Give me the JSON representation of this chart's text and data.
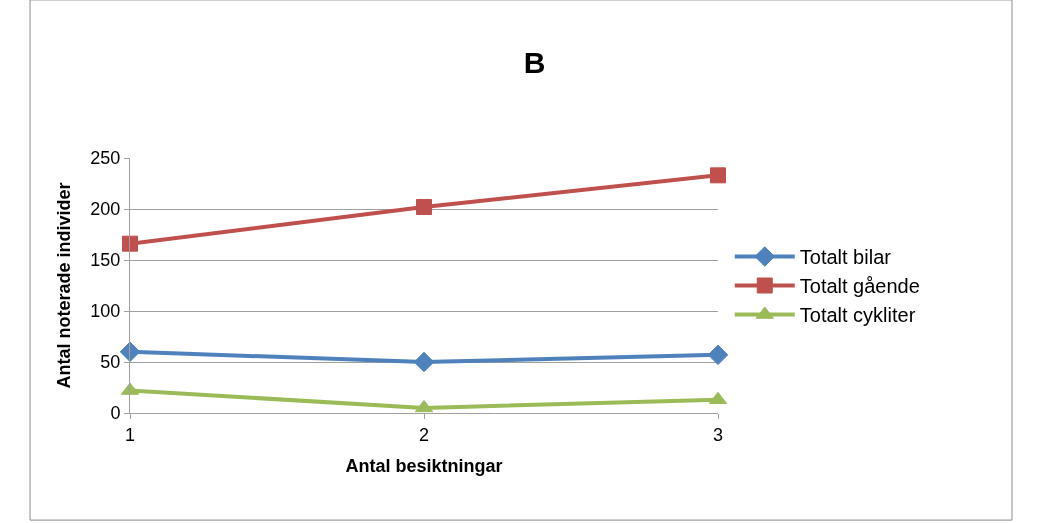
{
  "chart_data": {
    "type": "line",
    "title": "B",
    "xlabel": "Antal besiktningar",
    "ylabel": "Antal noterade individer",
    "x": [
      1,
      2,
      3
    ],
    "xlim": [
      1,
      3
    ],
    "xticks": [
      1,
      2,
      3
    ],
    "ylim": [
      0,
      250
    ],
    "yticks": [
      0,
      50,
      100,
      150,
      200,
      250
    ],
    "grid": "y",
    "legend": "right",
    "series": [
      {
        "name": "Totalt bilar",
        "color": "#4f81bd",
        "marker": "diamond",
        "values": [
          60,
          50,
          57
        ]
      },
      {
        "name": "Totalt gående",
        "color": "#c0504d",
        "marker": "square",
        "values": [
          166,
          202,
          233
        ]
      },
      {
        "name": "Totalt cykliter",
        "color": "#9bbb59",
        "marker": "triangle",
        "values": [
          22,
          5,
          13
        ]
      }
    ]
  }
}
